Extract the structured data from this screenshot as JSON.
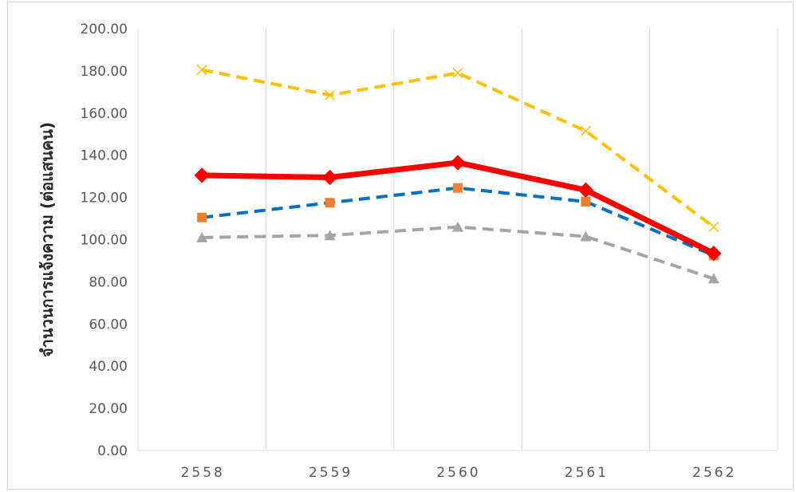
{
  "chart_data": {
    "type": "line",
    "title": "",
    "xlabel": "",
    "ylabel": "จำนวนการแจ้งความ (ต่อแสนคน)",
    "categories": [
      "2558",
      "2559",
      "2560",
      "2561",
      "2562"
    ],
    "ylim": [
      0,
      200
    ],
    "ytick_step": 20,
    "ytick_labels": [
      "0.00",
      "20.00",
      "40.00",
      "60.00",
      "80.00",
      "100.00",
      "120.00",
      "140.00",
      "160.00",
      "180.00",
      "200.00"
    ],
    "grid": "vertical",
    "legend": "none",
    "series": [
      {
        "values": [
          180.5,
          168.5,
          179.0,
          151.5,
          106.0
        ],
        "color": "#FFC000",
        "style": "dashed",
        "marker": "x"
      },
      {
        "values": [
          130.5,
          129.5,
          136.5,
          123.5,
          93.5
        ],
        "color": "#FF0000",
        "style": "solid",
        "marker": "diamond"
      },
      {
        "values": [
          110.5,
          117.5,
          124.5,
          118.0,
          92.5
        ],
        "color": "#0070C0",
        "style": "dashed",
        "marker": "square",
        "marker_color": "#ED7D31"
      },
      {
        "values": [
          101.0,
          102.0,
          106.0,
          101.5,
          81.5
        ],
        "color": "#A5A5A5",
        "style": "dashed",
        "marker": "triangle"
      }
    ]
  }
}
